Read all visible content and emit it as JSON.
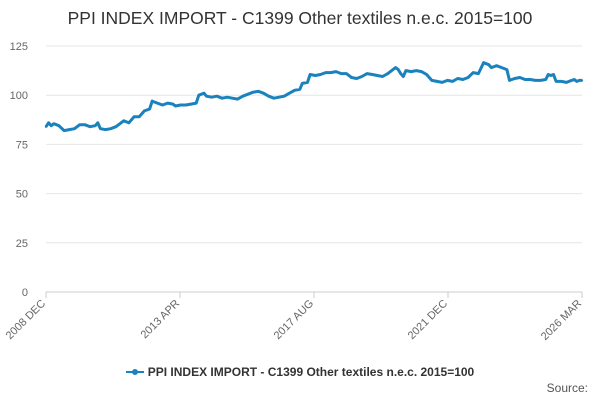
{
  "colors": {
    "series": "#1a82bd",
    "grid": "#e6e6e6",
    "axis": "#cccccc",
    "text": "#666666"
  },
  "source_label": "Source:",
  "chart_data": {
    "type": "line",
    "title": "PPI INDEX IMPORT - C1399 Other textiles n.e.c. 2015=100",
    "xlabel": "",
    "ylabel": "",
    "ylim": [
      0,
      125
    ],
    "yticks": [
      0,
      25,
      50,
      75,
      100,
      125
    ],
    "xlim": [
      "2008-12",
      "2026-03"
    ],
    "xticks": [
      "2008 DEC",
      "2013 APR",
      "2017 AUG",
      "2021 DEC",
      "2026 MAR"
    ],
    "grid": true,
    "legend": "bottom",
    "series": [
      {
        "name": "PPI INDEX IMPORT - C1399 Other textiles n.e.c. 2015=100",
        "points": [
          [
            "2008-12",
            84
          ],
          [
            "2009-01",
            86
          ],
          [
            "2009-02",
            84.5
          ],
          [
            "2009-03",
            85.5
          ],
          [
            "2009-05",
            84.5
          ],
          [
            "2009-07",
            82
          ],
          [
            "2009-09",
            82.5
          ],
          [
            "2009-11",
            83
          ],
          [
            "2010-01",
            85
          ],
          [
            "2010-03",
            85
          ],
          [
            "2010-05",
            84
          ],
          [
            "2010-07",
            84.5
          ],
          [
            "2010-08",
            86
          ],
          [
            "2010-09",
            83
          ],
          [
            "2010-11",
            82.5
          ],
          [
            "2011-01",
            83
          ],
          [
            "2011-03",
            84
          ],
          [
            "2011-05",
            86
          ],
          [
            "2011-06",
            87
          ],
          [
            "2011-08",
            86
          ],
          [
            "2011-10",
            89
          ],
          [
            "2011-12",
            89
          ],
          [
            "2012-02",
            92
          ],
          [
            "2012-04",
            93
          ],
          [
            "2012-05",
            97
          ],
          [
            "2012-07",
            96
          ],
          [
            "2012-09",
            95
          ],
          [
            "2012-11",
            96
          ],
          [
            "2013-01",
            95.5
          ],
          [
            "2013-02",
            94.5
          ],
          [
            "2013-04",
            95
          ],
          [
            "2013-06",
            95
          ],
          [
            "2013-08",
            95.5
          ],
          [
            "2013-10",
            96
          ],
          [
            "2013-11",
            100
          ],
          [
            "2014-01",
            101
          ],
          [
            "2014-02",
            99.5
          ],
          [
            "2014-04",
            99
          ],
          [
            "2014-06",
            99.5
          ],
          [
            "2014-08",
            98.5
          ],
          [
            "2014-10",
            99
          ],
          [
            "2014-12",
            98.5
          ],
          [
            "2015-02",
            98
          ],
          [
            "2015-04",
            99.5
          ],
          [
            "2015-06",
            100.5
          ],
          [
            "2015-08",
            101.5
          ],
          [
            "2015-10",
            102
          ],
          [
            "2015-12",
            101
          ],
          [
            "2016-02",
            99.5
          ],
          [
            "2016-04",
            98.5
          ],
          [
            "2016-06",
            99
          ],
          [
            "2016-08",
            99.5
          ],
          [
            "2016-10",
            101
          ],
          [
            "2016-12",
            102.5
          ],
          [
            "2017-02",
            103
          ],
          [
            "2017-03",
            106
          ],
          [
            "2017-05",
            106.5
          ],
          [
            "2017-06",
            110.5
          ],
          [
            "2017-08",
            110
          ],
          [
            "2017-10",
            110.5
          ],
          [
            "2017-12",
            111.5
          ],
          [
            "2018-02",
            111.5
          ],
          [
            "2018-04",
            112
          ],
          [
            "2018-06",
            111
          ],
          [
            "2018-08",
            111
          ],
          [
            "2018-10",
            109
          ],
          [
            "2018-12",
            108.5
          ],
          [
            "2019-02",
            109.5
          ],
          [
            "2019-04",
            111
          ],
          [
            "2019-06",
            110.5
          ],
          [
            "2019-08",
            110
          ],
          [
            "2019-10",
            109.5
          ],
          [
            "2019-12",
            111
          ],
          [
            "2020-02",
            113
          ],
          [
            "2020-03",
            114
          ],
          [
            "2020-04",
            113
          ],
          [
            "2020-05",
            111
          ],
          [
            "2020-06",
            109.5
          ],
          [
            "2020-07",
            112.5
          ],
          [
            "2020-09",
            112
          ],
          [
            "2020-11",
            112.5
          ],
          [
            "2021-01",
            112
          ],
          [
            "2021-03",
            110.5
          ],
          [
            "2021-05",
            107.5
          ],
          [
            "2021-07",
            107
          ],
          [
            "2021-09",
            106.5
          ],
          [
            "2021-11",
            107.5
          ],
          [
            "2022-01",
            107
          ],
          [
            "2022-03",
            108.5
          ],
          [
            "2022-05",
            108
          ],
          [
            "2022-07",
            109
          ],
          [
            "2022-09",
            111.5
          ],
          [
            "2022-11",
            111
          ],
          [
            "2023-01",
            116.5
          ],
          [
            "2023-03",
            115.5
          ],
          [
            "2023-04",
            114
          ],
          [
            "2023-06",
            115
          ],
          [
            "2023-08",
            114
          ],
          [
            "2023-10",
            113
          ],
          [
            "2023-11",
            107.5
          ],
          [
            "2024-01",
            108.5
          ],
          [
            "2024-03",
            109
          ],
          [
            "2024-05",
            108
          ],
          [
            "2024-07",
            108
          ],
          [
            "2024-09",
            107.5
          ],
          [
            "2024-11",
            107.5
          ],
          [
            "2025-01",
            108
          ],
          [
            "2025-02",
            110.5
          ],
          [
            "2025-03",
            110
          ],
          [
            "2025-04",
            110.5
          ],
          [
            "2025-05",
            107
          ],
          [
            "2025-07",
            107
          ],
          [
            "2025-09",
            106.5
          ],
          [
            "2025-11",
            107.5
          ],
          [
            "2025-12",
            108
          ],
          [
            "2026-01",
            107
          ],
          [
            "2026-02",
            107.5
          ],
          [
            "2026-03",
            107.5
          ]
        ]
      }
    ]
  }
}
